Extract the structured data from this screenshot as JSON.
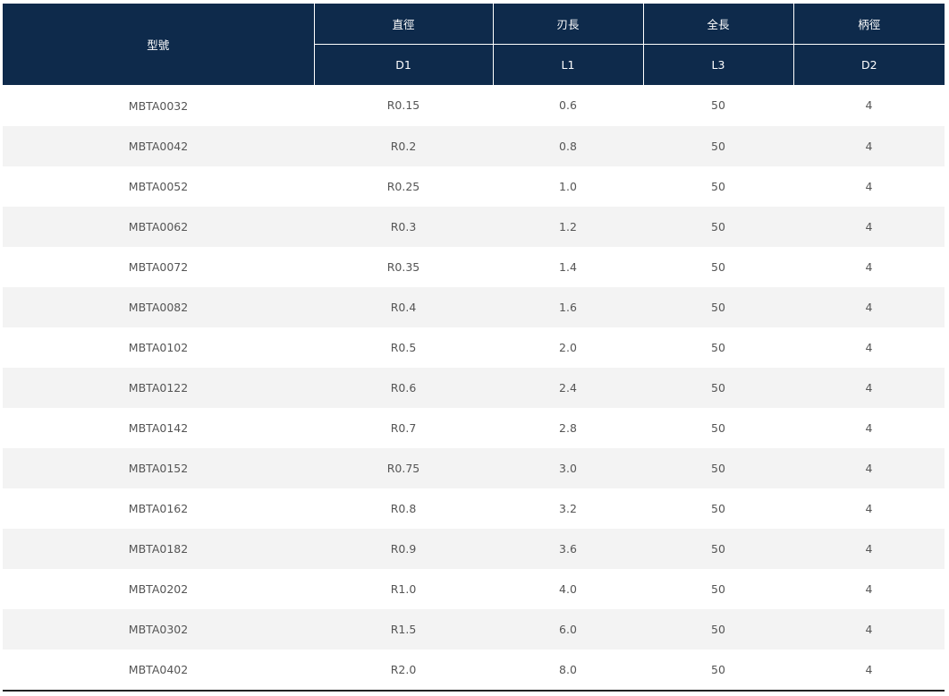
{
  "table": {
    "header_model": "型號",
    "group_headers": [
      "直徑",
      "刃長",
      "全長",
      "柄徑"
    ],
    "sub_headers": [
      "D1",
      "L1",
      "L3",
      "D2"
    ],
    "colors": {
      "header_bg": "#0e2a4b",
      "header_text": "#ffffff",
      "row_alt_bg": "#f3f3f3",
      "cell_text": "#555555"
    },
    "rows": [
      [
        "MBTA0032",
        "R0.15",
        "0.6",
        "50",
        "4"
      ],
      [
        "MBTA0042",
        "R0.2",
        "0.8",
        "50",
        "4"
      ],
      [
        "MBTA0052",
        "R0.25",
        "1.0",
        "50",
        "4"
      ],
      [
        "MBTA0062",
        "R0.3",
        "1.2",
        "50",
        "4"
      ],
      [
        "MBTA0072",
        "R0.35",
        "1.4",
        "50",
        "4"
      ],
      [
        "MBTA0082",
        "R0.4",
        "1.6",
        "50",
        "4"
      ],
      [
        "MBTA0102",
        "R0.5",
        "2.0",
        "50",
        "4"
      ],
      [
        "MBTA0122",
        "R0.6",
        "2.4",
        "50",
        "4"
      ],
      [
        "MBTA0142",
        "R0.7",
        "2.8",
        "50",
        "4"
      ],
      [
        "MBTA0152",
        "R0.75",
        "3.0",
        "50",
        "4"
      ],
      [
        "MBTA0162",
        "R0.8",
        "3.2",
        "50",
        "4"
      ],
      [
        "MBTA0182",
        "R0.9",
        "3.6",
        "50",
        "4"
      ],
      [
        "MBTA0202",
        "R1.0",
        "4.0",
        "50",
        "4"
      ],
      [
        "MBTA0302",
        "R1.5",
        "6.0",
        "50",
        "4"
      ],
      [
        "MBTA0402",
        "R2.0",
        "8.0",
        "50",
        "4"
      ]
    ]
  }
}
